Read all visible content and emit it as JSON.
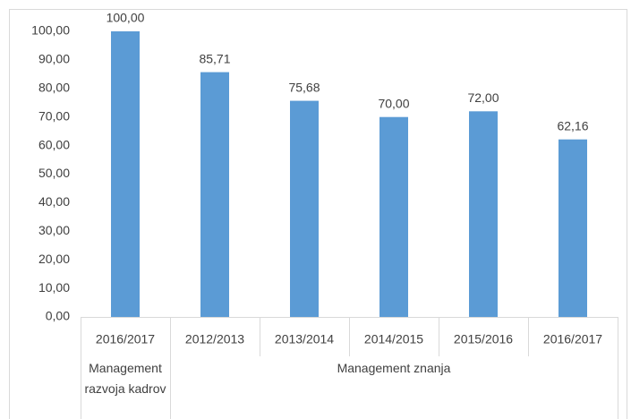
{
  "chart_data": {
    "type": "bar",
    "categories": [
      "2016/2017",
      "2012/2013",
      "2013/2014",
      "2014/2015",
      "2015/2016",
      "2016/2017"
    ],
    "groups": [
      {
        "label": "Management razvoja kadrov",
        "span": 1
      },
      {
        "label": "Management znanja",
        "span": 5
      }
    ],
    "values": [
      100,
      85.71,
      75.68,
      70,
      72,
      62.16
    ],
    "value_labels": [
      "100,00",
      "85,71",
      "75,68",
      "70,00",
      "72,00",
      "62,16"
    ],
    "color": "#5b9bd5",
    "ylim": [
      0,
      100
    ],
    "yticks": [
      {
        "value": 0,
        "label": "0,00"
      },
      {
        "value": 10,
        "label": "10,00"
      },
      {
        "value": 20,
        "label": "20,00"
      },
      {
        "value": 30,
        "label": "30,00"
      },
      {
        "value": 40,
        "label": "40,00"
      },
      {
        "value": 50,
        "label": "50,00"
      },
      {
        "value": 60,
        "label": "60,00"
      },
      {
        "value": 70,
        "label": "70,00"
      },
      {
        "value": 80,
        "label": "80,00"
      },
      {
        "value": 90,
        "label": "90,00"
      },
      {
        "value": 100,
        "label": "100,00"
      }
    ],
    "grid": false
  }
}
